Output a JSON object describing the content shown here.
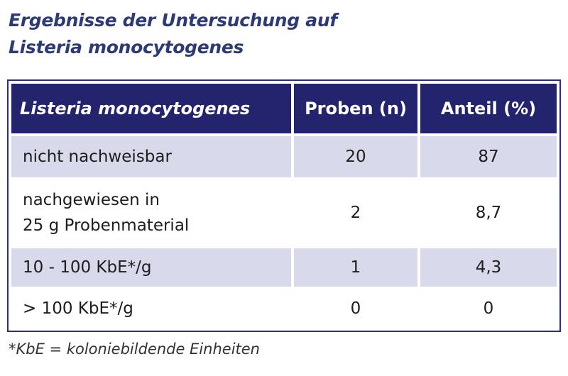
{
  "title": {
    "line1": "Ergebnisse der Untersuchung auf",
    "line2": "Listeria monocytogenes"
  },
  "table": {
    "headers": [
      "Listeria monocytogenes",
      "Proben (n)",
      "Anteil (%)"
    ],
    "rows": [
      {
        "label": "nicht nachweisbar",
        "proben": "20",
        "anteil": "87"
      },
      {
        "label_line1": "nachgewiesen in",
        "label_line2": "25 g Probenmaterial",
        "proben": "2",
        "anteil": "8,7"
      },
      {
        "label": "10 - 100 KbE*/g",
        "proben": "1",
        "anteil": "4,3"
      },
      {
        "label": "> 100 KbE*/g",
        "proben": "0",
        "anteil": "0"
      }
    ]
  },
  "footnote": "*KbE = koloniebildende Einheiten",
  "colors": {
    "title": "#2d3a78",
    "header_bg": "#24246e",
    "shade_row": "#d9d9ec",
    "border": "#2a2f78"
  }
}
